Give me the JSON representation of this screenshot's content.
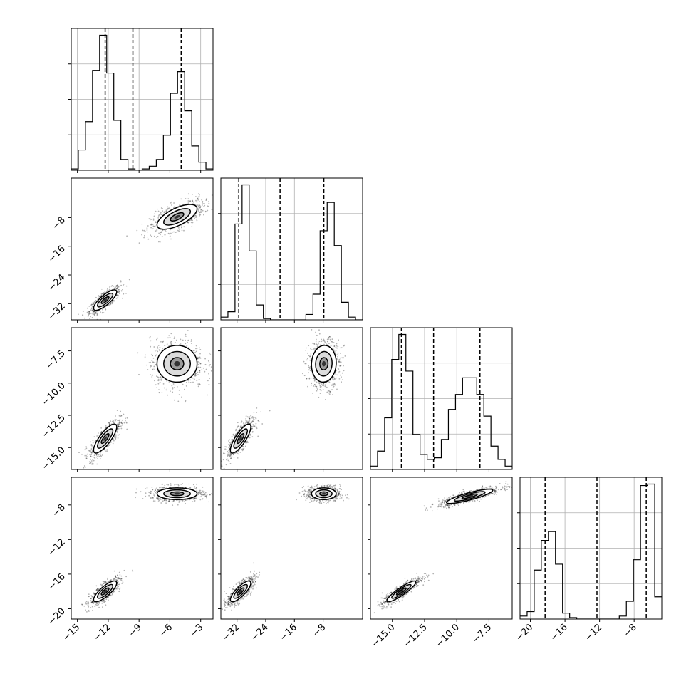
{
  "chart_data": {
    "type": "corner",
    "title": "",
    "parameters": [
      "",
      "",
      "",
      ""
    ],
    "ranges": [
      [
        -15.6,
        -1.8
      ],
      [
        -36.5,
        3.0
      ],
      [
        -16.7,
        -5.7
      ],
      [
        -21.2,
        -4.8
      ]
    ],
    "diag_ticks": [
      [
        -15,
        -12,
        -9,
        -6,
        -3
      ],
      [
        -32,
        -24,
        -16,
        -8
      ],
      [
        -15.0,
        -12.5,
        -10.0,
        -7.5
      ],
      [
        -20,
        -16,
        -12,
        -8
      ]
    ],
    "axis_tick_labels": {
      "x": [
        [
          "-15",
          "-12",
          "-9",
          "-6",
          "-3"
        ],
        [
          "-32",
          "-24",
          "-16",
          "-8"
        ],
        [
          "-15.0",
          "-12.5",
          "-10.0",
          "-7.5"
        ],
        [
          "-20",
          "-16",
          "-12",
          "-8"
        ]
      ],
      "y": [
        [],
        [
          "-8",
          "-16",
          "-24",
          "-32"
        ],
        [
          "-7.5",
          "-10.0",
          "-12.5",
          "-15.0"
        ],
        [
          "-8",
          "-12",
          "-16",
          "-20"
        ]
      ]
    },
    "histograms": [
      {
        "bin_edges": [
          -15.6,
          -14.91,
          -14.22,
          -13.53,
          -12.84,
          -12.15,
          -11.46,
          -10.77,
          -10.08,
          -9.39,
          -8.7,
          -8.01,
          -7.32,
          -6.63,
          -5.94,
          -5.25,
          -4.56,
          -3.87,
          -3.18,
          -2.49,
          -1.8
        ],
        "counts": [
          0.01,
          0.15,
          0.36,
          0.74,
          1.0,
          0.72,
          0.37,
          0.08,
          0.01,
          0.0,
          0.01,
          0.03,
          0.08,
          0.26,
          0.57,
          0.73,
          0.44,
          0.18,
          0.06,
          0.01
        ],
        "quantiles": [
          -12.3,
          -9.6,
          -4.9
        ]
      },
      {
        "bin_edges": [
          -36.5,
          -34.525,
          -32.55,
          -30.575,
          -28.6,
          -26.625,
          -24.65,
          -22.675,
          -20.7,
          -18.725,
          -16.75,
          -14.775,
          -12.8,
          -10.825,
          -8.85,
          -6.875,
          -4.9,
          -2.925,
          -0.95,
          1.025,
          3.0
        ],
        "counts": [
          0.02,
          0.06,
          0.71,
          1.0,
          0.51,
          0.11,
          0.01,
          0.0,
          0.0,
          0.0,
          0.0,
          0.0,
          0.04,
          0.19,
          0.66,
          0.87,
          0.55,
          0.13,
          0.02,
          0.0
        ],
        "quantiles": [
          -31.5,
          -20.0,
          -7.8
        ]
      },
      {
        "bin_edges": [
          -16.7,
          -16.15,
          -15.6,
          -15.05,
          -14.5,
          -13.95,
          -13.4,
          -12.85,
          -12.3,
          -11.75,
          -11.2,
          -10.65,
          -10.1,
          -9.55,
          -9.0,
          -8.45,
          -7.9,
          -7.35,
          -6.8,
          -6.25,
          -5.7
        ],
        "counts": [
          0.02,
          0.11,
          0.31,
          0.66,
          0.81,
          0.59,
          0.21,
          0.09,
          0.06,
          0.07,
          0.18,
          0.36,
          0.45,
          0.55,
          0.55,
          0.45,
          0.32,
          0.14,
          0.06,
          0.02
        ],
        "quantiles": [
          -14.3,
          -11.8,
          -8.2
        ]
      },
      {
        "bin_edges": [
          -21.2,
          -20.38,
          -19.56,
          -18.74,
          -17.92,
          -17.1,
          -16.28,
          -15.46,
          -14.64,
          -13.82,
          -13.0,
          -12.18,
          -11.36,
          -10.54,
          -9.72,
          -8.9,
          -8.08,
          -7.26,
          -6.44,
          -5.62,
          -4.8
        ],
        "counts": [
          0.02,
          0.05,
          0.33,
          0.53,
          0.59,
          0.37,
          0.04,
          0.01,
          0.0,
          0.0,
          0.0,
          0.0,
          0.0,
          0.0,
          0.02,
          0.12,
          0.4,
          0.9,
          0.91,
          0.15
        ],
        "quantiles": [
          -18.3,
          -12.3,
          -6.6
        ]
      }
    ],
    "pairs": [
      {
        "row": 1,
        "col": 0,
        "modes": [
          {
            "mean": [
              -12.3,
              -31.0
            ],
            "sd": [
              0.75,
              1.9
            ],
            "rho": 0.8
          },
          {
            "mean": [
              -5.3,
              -7.8
            ],
            "sd": [
              1.3,
              2.3
            ],
            "rho": 0.65
          }
        ]
      },
      {
        "row": 2,
        "col": 0,
        "modes": [
          {
            "mean": [
              -12.3,
              -14.3
            ],
            "sd": [
              0.75,
              0.75
            ],
            "rho": 0.8
          },
          {
            "mean": [
              -5.3,
              -8.5
            ],
            "sd": [
              1.3,
              0.95
            ],
            "rho": 0.0
          }
        ]
      },
      {
        "row": 2,
        "col": 1,
        "modes": [
          {
            "mean": [
              -31.0,
              -14.3
            ],
            "sd": [
              1.9,
              0.75
            ],
            "rho": 0.8
          },
          {
            "mean": [
              -7.8,
              -8.5
            ],
            "sd": [
              2.3,
              0.95
            ],
            "rho": 0.05
          }
        ]
      },
      {
        "row": 3,
        "col": 0,
        "modes": [
          {
            "mean": [
              -12.3,
              -18.0
            ],
            "sd": [
              0.75,
              0.8
            ],
            "rho": 0.8
          },
          {
            "mean": [
              -5.3,
              -6.7
            ],
            "sd": [
              1.3,
              0.45
            ],
            "rho": 0.0
          }
        ]
      },
      {
        "row": 3,
        "col": 1,
        "modes": [
          {
            "mean": [
              -31.0,
              -18.0
            ],
            "sd": [
              1.9,
              0.8
            ],
            "rho": 0.8
          },
          {
            "mean": [
              -7.8,
              -6.7
            ],
            "sd": [
              2.3,
              0.45
            ],
            "rho": 0.0
          }
        ]
      },
      {
        "row": 3,
        "col": 2,
        "modes": [
          {
            "mean": [
              -14.3,
              -18.0
            ],
            "sd": [
              0.75,
              0.8
            ],
            "rho": 0.9
          },
          {
            "mean": [
              -9.0,
              -7.0
            ],
            "sd": [
              1.2,
              0.55
            ],
            "rho": 0.85
          }
        ]
      }
    ],
    "contour_levels_sigma": [
      0.5,
      1.0,
      1.5
    ],
    "grid": true,
    "legend": ""
  }
}
